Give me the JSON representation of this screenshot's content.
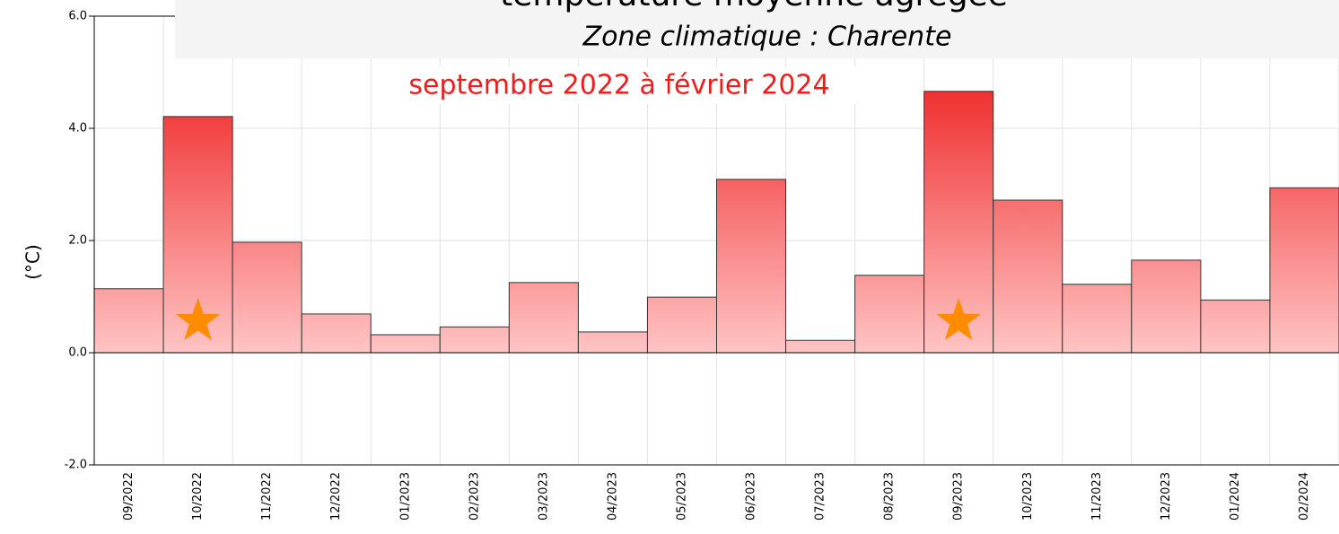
{
  "chart_data": {
    "type": "bar",
    "title": "température moyenne  agrégée",
    "subtitle": "Zone climatique : Charente",
    "period": "septembre 2022 à février 2024",
    "y_label": "(°C)",
    "categories": [
      "09/2022",
      "10/2022",
      "11/2022",
      "12/2022",
      "01/2023",
      "02/2023",
      "03/2023",
      "04/2023",
      "05/2023",
      "06/2023",
      "07/2023",
      "08/2023",
      "09/2023",
      "10/2023",
      "11/2023",
      "12/2023",
      "01/2024",
      "02/2024"
    ],
    "values": [
      1.14,
      4.21,
      1.97,
      0.69,
      0.32,
      0.46,
      1.25,
      0.37,
      0.99,
      3.09,
      0.22,
      1.38,
      4.66,
      2.72,
      1.22,
      1.65,
      0.94,
      2.94
    ],
    "color": "#f03030",
    "starred": [
      "10/2022",
      "09/2023"
    ],
    "star_color": "#ff8c00",
    "ylim": [
      -2,
      6
    ],
    "yticks": [
      {
        "value": -2,
        "label": "-2.0"
      },
      {
        "value": 0,
        "label": "0.0"
      },
      {
        "value": 2,
        "label": "2.0"
      },
      {
        "value": 4,
        "label": "4.0"
      },
      {
        "value": 6,
        "label": "6.0"
      }
    ],
    "grid": true
  }
}
